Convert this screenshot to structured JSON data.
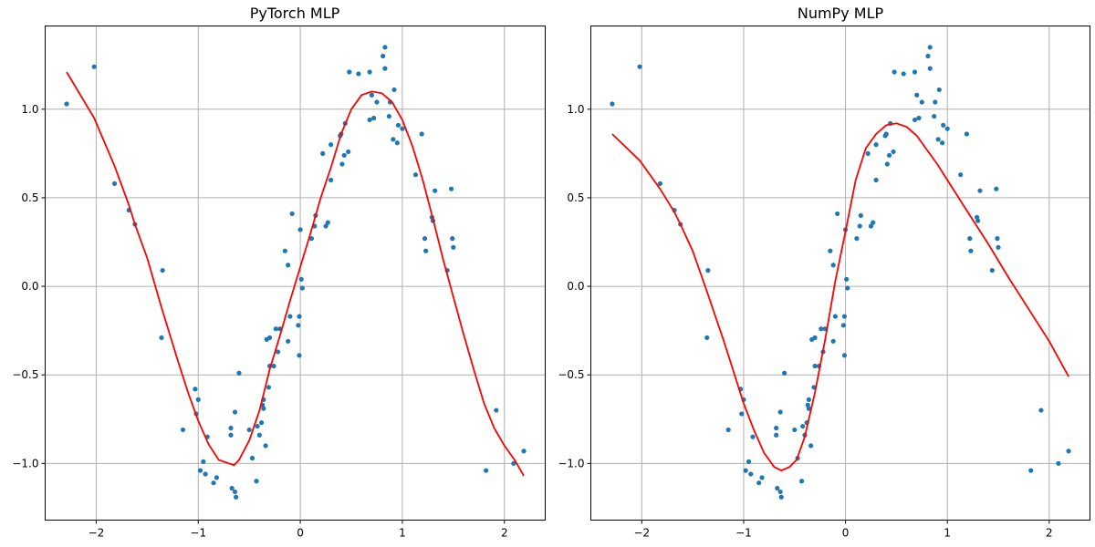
{
  "chart_data": [
    {
      "type": "scatter",
      "title": "PyTorch MLP",
      "xlabel": "",
      "ylabel": "",
      "xlim": [
        -2.5,
        2.4
      ],
      "ylim": [
        -1.32,
        1.47
      ],
      "grid": true,
      "xticks": [
        -2,
        -1,
        0,
        1,
        2
      ],
      "xtick_labels": [
        "−2",
        "−1",
        "0",
        "1",
        "2"
      ],
      "yticks": [
        -1.0,
        -0.5,
        0.0,
        0.5,
        1.0
      ],
      "ytick_labels": [
        "−1.0",
        "−0.5",
        "0.0",
        "0.5",
        "1.0"
      ],
      "scatter_color": "#1f77b4",
      "line_color": "#ff0000",
      "points": [
        [
          -2.29,
          1.03
        ],
        [
          -2.02,
          1.24
        ],
        [
          -1.82,
          0.58
        ],
        [
          -1.68,
          0.43
        ],
        [
          -1.62,
          0.35
        ],
        [
          -1.35,
          0.09
        ],
        [
          -1.36,
          -0.29
        ],
        [
          -1.15,
          -0.81
        ],
        [
          -1.03,
          -0.58
        ],
        [
          -1.02,
          -0.72
        ],
        [
          -1.0,
          -0.64
        ],
        [
          -0.98,
          -1.04
        ],
        [
          -0.95,
          -0.99
        ],
        [
          -0.93,
          -1.06
        ],
        [
          -0.91,
          -0.85
        ],
        [
          -0.85,
          -1.11
        ],
        [
          -0.82,
          -1.08
        ],
        [
          -0.68,
          -0.8
        ],
        [
          -0.68,
          -0.84
        ],
        [
          -0.67,
          -1.14
        ],
        [
          -0.64,
          -1.16
        ],
        [
          -0.64,
          -0.71
        ],
        [
          -0.63,
          -1.19
        ],
        [
          -0.6,
          -0.49
        ],
        [
          -0.5,
          -0.81
        ],
        [
          -0.47,
          -0.97
        ],
        [
          -0.43,
          -1.1
        ],
        [
          -0.42,
          -0.79
        ],
        [
          -0.4,
          -0.84
        ],
        [
          -0.38,
          -0.77
        ],
        [
          -0.37,
          -0.67
        ],
        [
          -0.36,
          -0.69
        ],
        [
          -0.36,
          -0.64
        ],
        [
          -0.34,
          -0.9
        ],
        [
          -0.33,
          -0.3
        ],
        [
          -0.31,
          -0.57
        ],
        [
          -0.3,
          -0.29
        ],
        [
          -0.3,
          -0.45
        ],
        [
          -0.26,
          -0.45
        ],
        [
          -0.24,
          -0.24
        ],
        [
          -0.22,
          -0.37
        ],
        [
          -0.2,
          -0.24
        ],
        [
          -0.15,
          0.2
        ],
        [
          -0.12,
          -0.31
        ],
        [
          -0.12,
          0.12
        ],
        [
          -0.1,
          -0.17
        ],
        [
          -0.08,
          0.41
        ],
        [
          -0.02,
          -0.22
        ],
        [
          -0.01,
          -0.17
        ],
        [
          -0.01,
          -0.39
        ],
        [
          0.0,
          0.32
        ],
        [
          0.01,
          0.04
        ],
        [
          0.02,
          -0.01
        ],
        [
          0.11,
          0.27
        ],
        [
          0.14,
          0.34
        ],
        [
          0.15,
          0.4
        ],
        [
          0.22,
          0.75
        ],
        [
          0.25,
          0.34
        ],
        [
          0.27,
          0.36
        ],
        [
          0.3,
          0.6
        ],
        [
          0.3,
          0.8
        ],
        [
          0.39,
          0.85
        ],
        [
          0.4,
          0.86
        ],
        [
          0.41,
          0.69
        ],
        [
          0.43,
          0.74
        ],
        [
          0.44,
          0.92
        ],
        [
          0.47,
          0.76
        ],
        [
          0.48,
          1.21
        ],
        [
          0.57,
          1.2
        ],
        [
          0.68,
          1.21
        ],
        [
          0.68,
          0.94
        ],
        [
          0.7,
          1.08
        ],
        [
          0.72,
          0.95
        ],
        [
          0.75,
          1.04
        ],
        [
          0.81,
          1.3
        ],
        [
          0.83,
          1.23
        ],
        [
          0.83,
          1.35
        ],
        [
          0.87,
          0.96
        ],
        [
          0.88,
          1.04
        ],
        [
          0.91,
          0.83
        ],
        [
          0.92,
          1.11
        ],
        [
          0.95,
          0.81
        ],
        [
          0.96,
          0.91
        ],
        [
          1.0,
          0.89
        ],
        [
          1.13,
          0.63
        ],
        [
          1.19,
          0.86
        ],
        [
          1.22,
          0.27
        ],
        [
          1.23,
          0.2
        ],
        [
          1.29,
          0.39
        ],
        [
          1.3,
          0.37
        ],
        [
          1.32,
          0.54
        ],
        [
          1.44,
          0.09
        ],
        [
          1.48,
          0.55
        ],
        [
          1.49,
          0.27
        ],
        [
          1.5,
          0.22
        ],
        [
          1.82,
          -1.04
        ],
        [
          1.92,
          -0.7
        ],
        [
          2.09,
          -1.0
        ],
        [
          2.19,
          -0.93
        ]
      ],
      "line": [
        [
          -2.29,
          1.21
        ],
        [
          -2.02,
          0.95
        ],
        [
          -1.82,
          0.68
        ],
        [
          -1.68,
          0.46
        ],
        [
          -1.62,
          0.35
        ],
        [
          -1.5,
          0.16
        ],
        [
          -1.36,
          -0.12
        ],
        [
          -1.2,
          -0.42
        ],
        [
          -1.1,
          -0.6
        ],
        [
          -1.0,
          -0.76
        ],
        [
          -0.9,
          -0.89
        ],
        [
          -0.8,
          -0.98
        ],
        [
          -0.7,
          -1.0
        ],
        [
          -0.65,
          -1.01
        ],
        [
          -0.6,
          -0.98
        ],
        [
          -0.5,
          -0.87
        ],
        [
          -0.4,
          -0.7
        ],
        [
          -0.3,
          -0.47
        ],
        [
          -0.2,
          -0.28
        ],
        [
          -0.1,
          -0.08
        ],
        [
          0.0,
          0.11
        ],
        [
          0.1,
          0.3
        ],
        [
          0.2,
          0.5
        ],
        [
          0.3,
          0.67
        ],
        [
          0.4,
          0.86
        ],
        [
          0.5,
          1.0
        ],
        [
          0.6,
          1.08
        ],
        [
          0.7,
          1.1
        ],
        [
          0.8,
          1.09
        ],
        [
          0.9,
          1.04
        ],
        [
          1.0,
          0.94
        ],
        [
          1.1,
          0.79
        ],
        [
          1.2,
          0.6
        ],
        [
          1.3,
          0.38
        ],
        [
          1.4,
          0.15
        ],
        [
          1.5,
          -0.06
        ],
        [
          1.6,
          -0.27
        ],
        [
          1.7,
          -0.47
        ],
        [
          1.8,
          -0.66
        ],
        [
          1.9,
          -0.8
        ],
        [
          2.0,
          -0.9
        ],
        [
          2.1,
          -0.98
        ],
        [
          2.19,
          -1.07
        ]
      ]
    },
    {
      "type": "scatter",
      "title": "NumPy MLP",
      "xlabel": "",
      "ylabel": "",
      "xlim": [
        -2.5,
        2.4
      ],
      "ylim": [
        -1.32,
        1.47
      ],
      "grid": true,
      "xticks": [
        -2,
        -1,
        0,
        1,
        2
      ],
      "xtick_labels": [
        "−2",
        "−1",
        "0",
        "1",
        "2"
      ],
      "yticks": [
        -1.0,
        -0.5,
        0.0,
        0.5,
        1.0
      ],
      "ytick_labels": [
        "−1.0",
        "−0.5",
        "0.0",
        "0.5",
        "1.0"
      ],
      "scatter_color": "#1f77b4",
      "line_color": "#ff0000",
      "points": [
        [
          -2.29,
          1.03
        ],
        [
          -2.02,
          1.24
        ],
        [
          -1.82,
          0.58
        ],
        [
          -1.68,
          0.43
        ],
        [
          -1.62,
          0.35
        ],
        [
          -1.35,
          0.09
        ],
        [
          -1.36,
          -0.29
        ],
        [
          -1.15,
          -0.81
        ],
        [
          -1.03,
          -0.58
        ],
        [
          -1.02,
          -0.72
        ],
        [
          -1.0,
          -0.64
        ],
        [
          -0.98,
          -1.04
        ],
        [
          -0.95,
          -0.99
        ],
        [
          -0.93,
          -1.06
        ],
        [
          -0.91,
          -0.85
        ],
        [
          -0.85,
          -1.11
        ],
        [
          -0.82,
          -1.08
        ],
        [
          -0.68,
          -0.8
        ],
        [
          -0.68,
          -0.84
        ],
        [
          -0.67,
          -1.14
        ],
        [
          -0.64,
          -1.16
        ],
        [
          -0.64,
          -0.71
        ],
        [
          -0.63,
          -1.19
        ],
        [
          -0.6,
          -0.49
        ],
        [
          -0.5,
          -0.81
        ],
        [
          -0.47,
          -0.97
        ],
        [
          -0.43,
          -1.1
        ],
        [
          -0.42,
          -0.79
        ],
        [
          -0.4,
          -0.84
        ],
        [
          -0.38,
          -0.77
        ],
        [
          -0.37,
          -0.67
        ],
        [
          -0.36,
          -0.69
        ],
        [
          -0.36,
          -0.64
        ],
        [
          -0.34,
          -0.9
        ],
        [
          -0.33,
          -0.3
        ],
        [
          -0.31,
          -0.57
        ],
        [
          -0.3,
          -0.29
        ],
        [
          -0.3,
          -0.45
        ],
        [
          -0.26,
          -0.45
        ],
        [
          -0.24,
          -0.24
        ],
        [
          -0.22,
          -0.37
        ],
        [
          -0.2,
          -0.24
        ],
        [
          -0.15,
          0.2
        ],
        [
          -0.12,
          -0.31
        ],
        [
          -0.12,
          0.12
        ],
        [
          -0.1,
          -0.17
        ],
        [
          -0.08,
          0.41
        ],
        [
          -0.02,
          -0.22
        ],
        [
          -0.01,
          -0.17
        ],
        [
          -0.01,
          -0.39
        ],
        [
          0.0,
          0.32
        ],
        [
          0.01,
          0.04
        ],
        [
          0.02,
          -0.01
        ],
        [
          0.11,
          0.27
        ],
        [
          0.14,
          0.34
        ],
        [
          0.15,
          0.4
        ],
        [
          0.22,
          0.75
        ],
        [
          0.25,
          0.34
        ],
        [
          0.27,
          0.36
        ],
        [
          0.3,
          0.6
        ],
        [
          0.3,
          0.8
        ],
        [
          0.39,
          0.85
        ],
        [
          0.4,
          0.86
        ],
        [
          0.41,
          0.69
        ],
        [
          0.43,
          0.74
        ],
        [
          0.44,
          0.92
        ],
        [
          0.47,
          0.76
        ],
        [
          0.48,
          1.21
        ],
        [
          0.57,
          1.2
        ],
        [
          0.68,
          1.21
        ],
        [
          0.68,
          0.94
        ],
        [
          0.7,
          1.08
        ],
        [
          0.72,
          0.95
        ],
        [
          0.75,
          1.04
        ],
        [
          0.81,
          1.3
        ],
        [
          0.83,
          1.23
        ],
        [
          0.83,
          1.35
        ],
        [
          0.87,
          0.96
        ],
        [
          0.88,
          1.04
        ],
        [
          0.91,
          0.83
        ],
        [
          0.92,
          1.11
        ],
        [
          0.95,
          0.81
        ],
        [
          0.96,
          0.91
        ],
        [
          1.0,
          0.89
        ],
        [
          1.13,
          0.63
        ],
        [
          1.19,
          0.86
        ],
        [
          1.22,
          0.27
        ],
        [
          1.23,
          0.2
        ],
        [
          1.29,
          0.39
        ],
        [
          1.3,
          0.37
        ],
        [
          1.32,
          0.54
        ],
        [
          1.44,
          0.09
        ],
        [
          1.48,
          0.55
        ],
        [
          1.49,
          0.27
        ],
        [
          1.5,
          0.22
        ],
        [
          1.82,
          -1.04
        ],
        [
          1.92,
          -0.7
        ],
        [
          2.09,
          -1.0
        ],
        [
          2.19,
          -0.93
        ]
      ],
      "line": [
        [
          -2.29,
          0.86
        ],
        [
          -2.02,
          0.71
        ],
        [
          -1.82,
          0.55
        ],
        [
          -1.68,
          0.42
        ],
        [
          -1.62,
          0.35
        ],
        [
          -1.5,
          0.2
        ],
        [
          -1.36,
          -0.03
        ],
        [
          -1.2,
          -0.3
        ],
        [
          -1.1,
          -0.48
        ],
        [
          -1.0,
          -0.66
        ],
        [
          -0.9,
          -0.81
        ],
        [
          -0.8,
          -0.94
        ],
        [
          -0.7,
          -1.02
        ],
        [
          -0.63,
          -1.04
        ],
        [
          -0.55,
          -1.02
        ],
        [
          -0.48,
          -0.98
        ],
        [
          -0.4,
          -0.85
        ],
        [
          -0.3,
          -0.6
        ],
        [
          -0.2,
          -0.3
        ],
        [
          -0.1,
          0.03
        ],
        [
          0.0,
          0.31
        ],
        [
          0.1,
          0.6
        ],
        [
          0.2,
          0.78
        ],
        [
          0.3,
          0.86
        ],
        [
          0.4,
          0.91
        ],
        [
          0.5,
          0.92
        ],
        [
          0.6,
          0.9
        ],
        [
          0.7,
          0.85
        ],
        [
          0.8,
          0.77
        ],
        [
          0.9,
          0.69
        ],
        [
          1.0,
          0.6
        ],
        [
          1.2,
          0.42
        ],
        [
          1.4,
          0.24
        ],
        [
          1.6,
          0.05
        ],
        [
          1.8,
          -0.13
        ],
        [
          2.0,
          -0.31
        ],
        [
          2.19,
          -0.51
        ]
      ]
    }
  ]
}
